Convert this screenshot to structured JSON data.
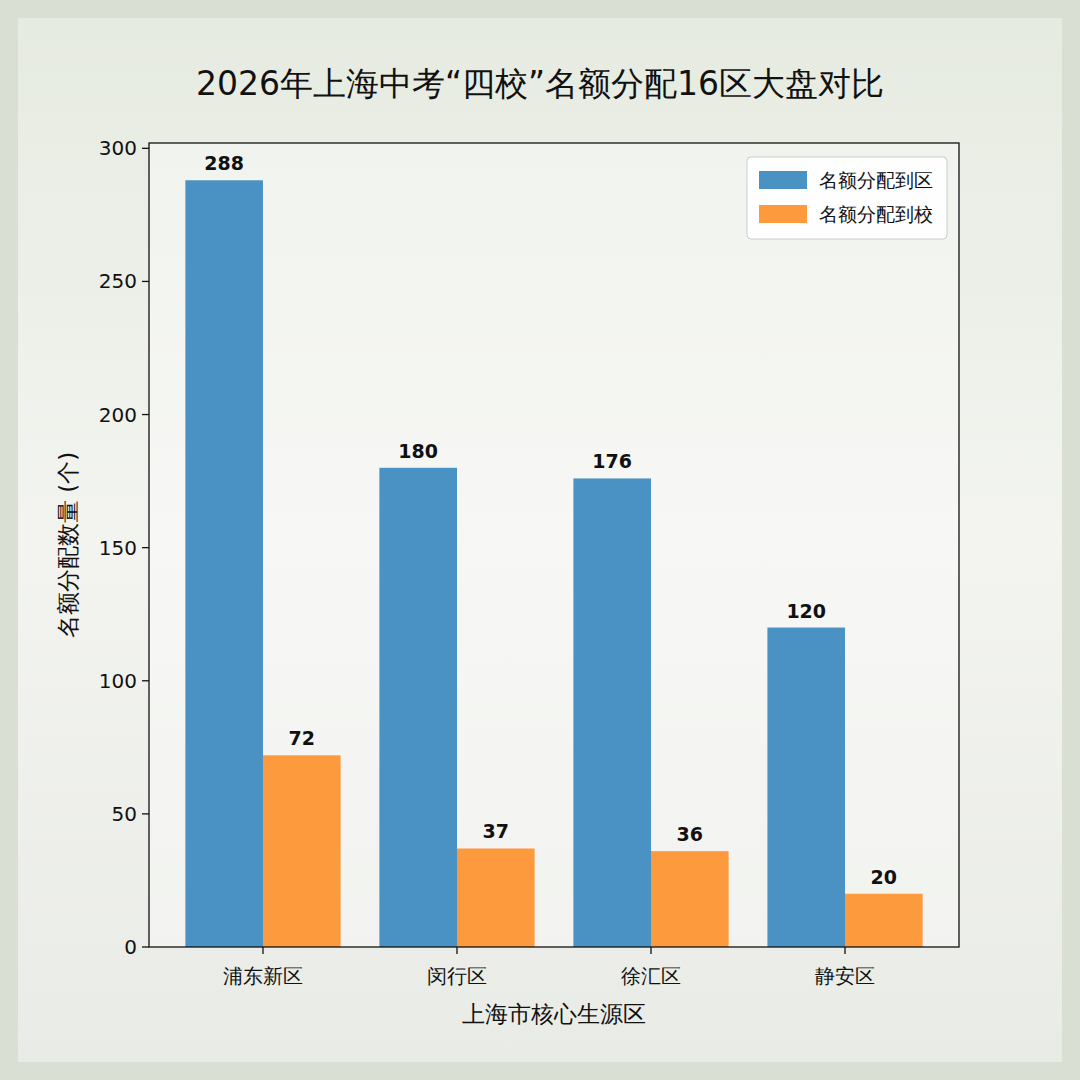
{
  "chart_data": {
    "type": "bar",
    "title": "2026年上海中考“四校”名额分配16区大盘对比",
    "x_label": "上海市核心生源区",
    "y_label": "名额分配数量 (个)",
    "categories": [
      "浦东新区",
      "闵行区",
      "徐汇区",
      "静安区"
    ],
    "series": [
      {
        "name": "名额分配到区",
        "color": "#4a92c3",
        "values": [
          288,
          180,
          176,
          120
        ]
      },
      {
        "name": "名额分配到校",
        "color": "#fd9a3d",
        "values": [
          72,
          37,
          36,
          20
        ]
      }
    ],
    "ylim": [
      0,
      302
    ],
    "yticks": [
      0,
      50,
      100,
      150,
      200,
      250,
      300
    ],
    "grid": false,
    "legend": "upper right",
    "data_labels": true
  }
}
